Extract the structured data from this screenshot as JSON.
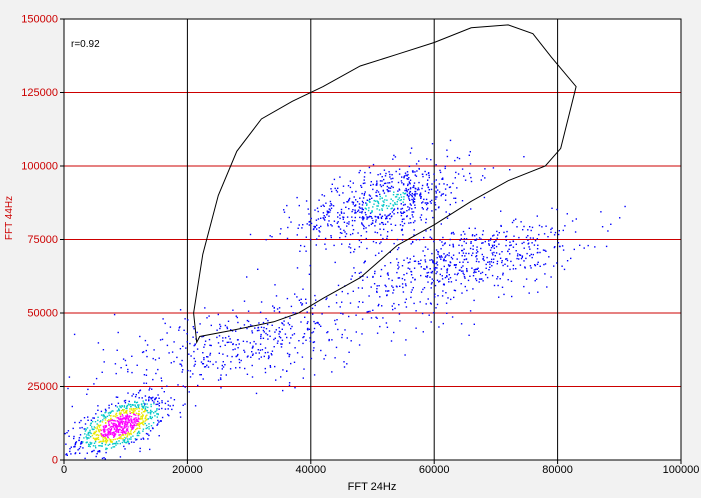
{
  "chart_data": {
    "type": "scatter",
    "title": "",
    "xlabel": "FFT 24Hz",
    "ylabel": "FFT 44Hz",
    "annotation": "r=0.92",
    "xlim": [
      0,
      100000
    ],
    "ylim": [
      0,
      150000
    ],
    "x_ticks": [
      0,
      20000,
      40000,
      60000,
      80000,
      100000
    ],
    "y_ticks": [
      0,
      25000,
      50000,
      75000,
      100000,
      125000,
      150000
    ],
    "x_tick_labels": [
      "0",
      "20000",
      "40000",
      "60000",
      "80000",
      "100000"
    ],
    "y_tick_labels": [
      "0",
      "25000",
      "50000",
      "75000",
      "100000",
      "125000",
      "150000"
    ],
    "grid": {
      "horizontal": true,
      "vertical": true
    },
    "colors": {
      "background": "#ffffff",
      "horizontal_grid": "#cc0000",
      "vertical_grid": "#000000",
      "axis_label": "#cc0000",
      "points": "#0000ff",
      "density_mid": "#00c8c8",
      "density_high": "#e8e800",
      "density_max": "#ff00ff",
      "gate": "#000000"
    },
    "clusters": [
      {
        "name": "",
        "center": [
          9000,
          12000
        ],
        "spread": [
          3500,
          6500
        ],
        "points": 900,
        "density": "max"
      },
      {
        "name": "",
        "center": [
          52000,
          88000
        ],
        "spread": [
          7000,
          10000
        ],
        "points": 700,
        "density": "mid"
      },
      {
        "name": "",
        "center": [
          65000,
          68000
        ],
        "spread": [
          9000,
          10000
        ],
        "points": 600,
        "density": "low"
      },
      {
        "name": "",
        "center": [
          30000,
          40000
        ],
        "spread": [
          14000,
          12000
        ],
        "points": 500,
        "density": "low"
      }
    ],
    "gate_polygon": [
      [
        21500,
        40000
      ],
      [
        22000,
        42000
      ],
      [
        27000,
        44000
      ],
      [
        34000,
        47000
      ],
      [
        38000,
        50000
      ],
      [
        42000,
        55000
      ],
      [
        48000,
        62000
      ],
      [
        54000,
        73000
      ],
      [
        60000,
        80000
      ],
      [
        66000,
        88000
      ],
      [
        72000,
        95000
      ],
      [
        78000,
        100000
      ],
      [
        80500,
        106000
      ],
      [
        83000,
        127000
      ],
      [
        79000,
        137000
      ],
      [
        76000,
        145000
      ],
      [
        72000,
        148000
      ],
      [
        66000,
        147000
      ],
      [
        60000,
        142000
      ],
      [
        54000,
        138000
      ],
      [
        48000,
        134000
      ],
      [
        42000,
        127000
      ],
      [
        37000,
        122000
      ],
      [
        32000,
        116000
      ],
      [
        28000,
        105000
      ],
      [
        25000,
        90000
      ],
      [
        22500,
        70000
      ],
      [
        21000,
        50000
      ],
      [
        21500,
        40000
      ]
    ]
  }
}
